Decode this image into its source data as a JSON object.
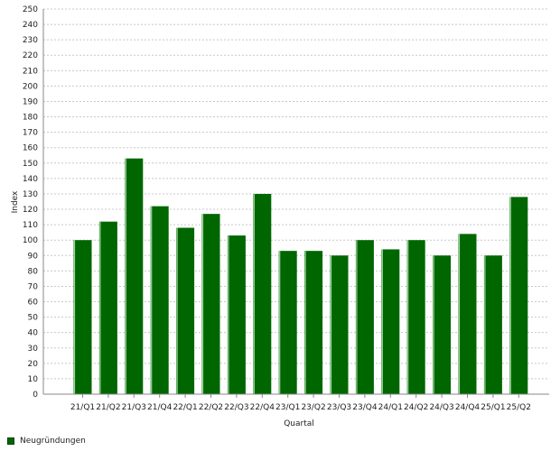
{
  "chart_data": {
    "type": "bar",
    "title": "",
    "xlabel": "Quartal",
    "ylabel": "Index",
    "ylim": [
      0,
      250
    ],
    "ytick_step": 10,
    "grid": true,
    "legend_position": "bottom-left",
    "categories": [
      "21/Q1",
      "21/Q2",
      "21/Q3",
      "21/Q4",
      "22/Q1",
      "22/Q2",
      "22/Q3",
      "22/Q4",
      "23/Q1",
      "23/Q2",
      "23/Q3",
      "23/Q4",
      "24/Q1",
      "24/Q2",
      "24/Q3",
      "24/Q4",
      "25/Q1",
      "25/Q2"
    ],
    "series": [
      {
        "name": "Neugründungen",
        "color": "#006600",
        "values": [
          100,
          112,
          153,
          122,
          108,
          117,
          103,
          130,
          93,
          93,
          90,
          100,
          94,
          100,
          90,
          104,
          90,
          128
        ]
      }
    ]
  }
}
